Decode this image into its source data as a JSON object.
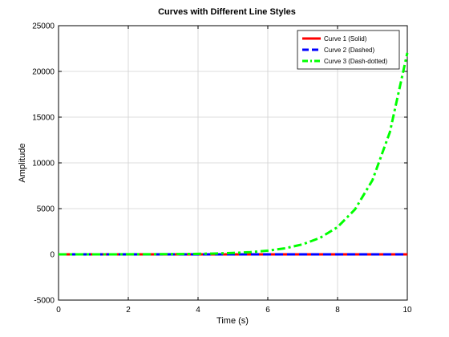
{
  "chart_data": {
    "type": "line",
    "title": "Curves with Different Line Styles",
    "xlabel": "Time (s)",
    "ylabel": "Amplitude",
    "xlim": [
      0,
      10
    ],
    "ylim": [
      -5000,
      25000
    ],
    "xticks": [
      0,
      2,
      4,
      6,
      8,
      10
    ],
    "yticks": [
      -5000,
      0,
      5000,
      10000,
      15000,
      20000,
      25000
    ],
    "grid": true,
    "legend_position": "top-right",
    "x": [
      0,
      0.5,
      1,
      1.5,
      2,
      2.5,
      3,
      3.5,
      4,
      4.5,
      5,
      5.5,
      6,
      6.5,
      7,
      7.5,
      8,
      8.5,
      9,
      9.5,
      10
    ],
    "series": [
      {
        "name": "Curve 1 (Solid)",
        "color": "#ff0000",
        "style": "solid",
        "values": [
          0,
          0,
          0,
          0,
          0,
          0,
          0,
          0,
          0,
          0,
          0,
          0,
          0,
          0,
          0,
          0,
          0,
          0,
          0,
          0,
          0
        ]
      },
      {
        "name": "Curve 2 (Dashed)",
        "color": "#0000ff",
        "style": "dashed",
        "values": [
          0,
          0,
          0,
          0,
          0,
          0,
          0,
          0,
          0,
          0,
          0,
          0,
          0,
          0,
          0,
          0,
          0,
          0,
          0,
          0,
          0
        ]
      },
      {
        "name": "Curve 3 (Dash-dotted)",
        "color": "#00ff00",
        "style": "dash-dot",
        "values": [
          1,
          2,
          3,
          4,
          7,
          12,
          20,
          33,
          55,
          90,
          148,
          245,
          403,
          665,
          1097,
          1808,
          2981,
          4915,
          8103,
          13360,
          22026
        ]
      }
    ]
  }
}
